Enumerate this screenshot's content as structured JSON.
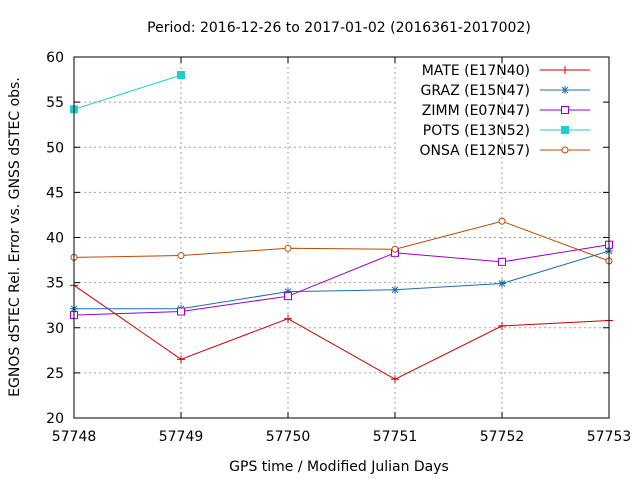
{
  "chart_data": {
    "type": "line",
    "title": "Period: 2016-12-26 to 2017-01-02 (2016361-2017002)",
    "xlabel": "GPS time / Modified Julian Days",
    "ylabel": "EGNOS dSTEC Rel. Error vs. GNSS dSTEC obs.",
    "xlim": [
      57748,
      57753
    ],
    "ylim": [
      20,
      60
    ],
    "x_ticks": [
      57748,
      57749,
      57750,
      57751,
      57752,
      57753
    ],
    "y_ticks": [
      20,
      25,
      30,
      35,
      40,
      45,
      50,
      55,
      60
    ],
    "grid": true,
    "legend_position": "top-right",
    "series": [
      {
        "name": "MATE (E17N40)",
        "color": "#cc0000",
        "marker": "plus",
        "x": [
          57748,
          57749,
          57750,
          57751,
          57752,
          57753
        ],
        "values": [
          34.7,
          26.5,
          31.0,
          24.3,
          30.2,
          30.8
        ]
      },
      {
        "name": "GRAZ (E15N47)",
        "color": "#1a6fb0",
        "marker": "star",
        "x": [
          57748,
          57749,
          57750,
          57751,
          57752,
          57753
        ],
        "values": [
          32.1,
          32.1,
          34.0,
          34.2,
          34.9,
          38.5
        ]
      },
      {
        "name": "ZIMM (E07N47)",
        "color": "#9900cc",
        "marker": "open-square",
        "x": [
          57748,
          57749,
          57750,
          57751,
          57752,
          57753
        ],
        "values": [
          31.4,
          31.8,
          33.5,
          38.3,
          37.3,
          39.2
        ]
      },
      {
        "name": "POTS (E13N52)",
        "color": "#22cccc",
        "marker": "filled-square",
        "x": [
          57748,
          57749
        ],
        "values": [
          54.2,
          58.0
        ]
      },
      {
        "name": "ONSA (E12N57)",
        "color": "#b84a0a",
        "marker": "open-circle",
        "x": [
          57748,
          57749,
          57750,
          57751,
          57752,
          57753
        ],
        "values": [
          37.8,
          38.0,
          38.8,
          38.7,
          41.8,
          37.4
        ]
      }
    ]
  }
}
